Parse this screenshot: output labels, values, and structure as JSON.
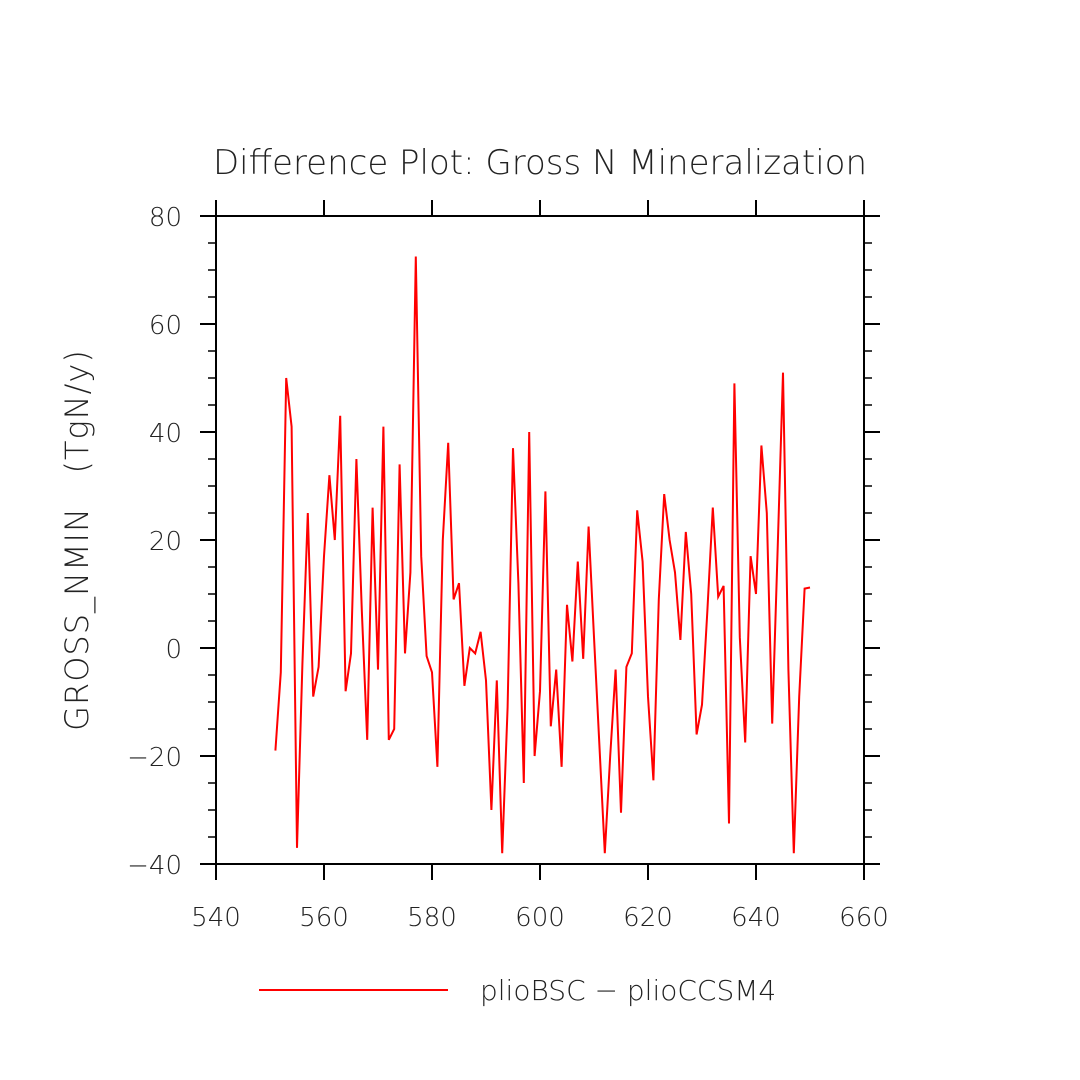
{
  "chart_data": {
    "type": "line",
    "title": "Difference Plot: Gross N Mineralization",
    "xlabel": "",
    "ylabel": "GROSS_NMIN   (TgN/y)",
    "xlim": [
      540,
      660
    ],
    "ylim": [
      -40,
      80
    ],
    "x_ticks": [
      540,
      560,
      580,
      600,
      620,
      640,
      660
    ],
    "y_ticks": [
      -40,
      -20,
      0,
      20,
      40,
      60,
      80
    ],
    "x_tick_labels": [
      "540",
      "560",
      "580",
      "600",
      "620",
      "640",
      "660"
    ],
    "y_tick_labels": [
      "−40",
      "−20",
      "0",
      "20",
      "40",
      "60",
      "80"
    ],
    "legend_position": "bottom",
    "series": [
      {
        "name": "plioBSC − plioCCSM4",
        "color": "#ff0000",
        "x": [
          551,
          552,
          553,
          554,
          555,
          556,
          557,
          558,
          559,
          560,
          561,
          562,
          563,
          564,
          565,
          566,
          567,
          568,
          569,
          570,
          571,
          572,
          573,
          574,
          575,
          576,
          577,
          578,
          579,
          580,
          581,
          582,
          583,
          584,
          585,
          586,
          587,
          588,
          589,
          590,
          591,
          592,
          593,
          594,
          595,
          596,
          597,
          598,
          599,
          600,
          601,
          602,
          603,
          604,
          605,
          606,
          607,
          608,
          609,
          610,
          611,
          612,
          613,
          614,
          615,
          616,
          617,
          618,
          619,
          620,
          621,
          622,
          623,
          624,
          625,
          626,
          627,
          628,
          629,
          630,
          631,
          632,
          633,
          634,
          635,
          636,
          637,
          638,
          639,
          640,
          641,
          642,
          643,
          644,
          645,
          646,
          647,
          648,
          649,
          650
        ],
        "y": [
          -19,
          -4.5,
          50,
          41,
          -37,
          -3,
          25,
          -9,
          -3.5,
          17,
          32,
          20,
          43,
          -8,
          -1,
          35,
          7,
          -17,
          26,
          -4,
          41,
          -17,
          -15,
          34,
          -1,
          14,
          72.5,
          17,
          -1.5,
          -4.5,
          -22,
          20,
          38,
          9,
          12,
          -7,
          0,
          -1,
          3,
          -6,
          -30,
          -6,
          -38,
          -11,
          37,
          12,
          -25,
          40,
          -20,
          -8,
          29,
          -14.5,
          -4,
          -22,
          8,
          -2.5,
          16,
          -2,
          22.5,
          2,
          -18,
          -38,
          -20,
          -4,
          -30.5,
          -3.5,
          -1,
          25.5,
          16,
          -9,
          -24.5,
          9,
          28.5,
          20,
          14,
          1.5,
          21.5,
          10,
          -16,
          -10.5,
          7,
          26,
          9.5,
          11.5,
          -32.5,
          49,
          2,
          -17.5,
          17,
          10,
          37.5,
          25,
          -14,
          18,
          51,
          -4,
          -38,
          -9,
          11,
          11.2
        ]
      }
    ]
  }
}
